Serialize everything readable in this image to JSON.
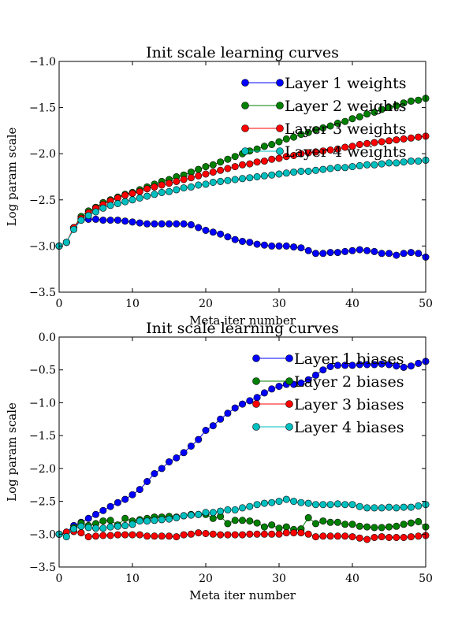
{
  "chart_data": [
    {
      "type": "line",
      "title": "Init scale learning curves",
      "xlabel": "Meta iter number",
      "ylabel": "Log param scale",
      "xlim": [
        0,
        50
      ],
      "ylim": [
        -3.5,
        -1.0
      ],
      "xticks": [
        "0",
        "10",
        "20",
        "30",
        "40",
        "50"
      ],
      "yticks": [
        "−1.0",
        "−1.5",
        "−2.0",
        "−2.5",
        "−3.0",
        "−3.5"
      ],
      "ytick_values": [
        -1.0,
        -1.5,
        -2.0,
        -2.5,
        -3.0,
        -3.5
      ],
      "grid": false,
      "legend_position": "top-right",
      "x": [
        0,
        1,
        2,
        3,
        4,
        5,
        6,
        7,
        8,
        9,
        10,
        11,
        12,
        13,
        14,
        15,
        16,
        17,
        18,
        19,
        20,
        21,
        22,
        23,
        24,
        25,
        26,
        27,
        28,
        29,
        30,
        31,
        32,
        33,
        34,
        35,
        36,
        37,
        38,
        39,
        40,
        41,
        42,
        43,
        44,
        45,
        46,
        47,
        48,
        49,
        50
      ],
      "series": [
        {
          "name": "Layer 1 weights",
          "color": "#0000ff",
          "values": [
            -3.0,
            -2.96,
            -2.8,
            -2.72,
            -2.71,
            -2.71,
            -2.72,
            -2.72,
            -2.72,
            -2.73,
            -2.74,
            -2.75,
            -2.76,
            -2.76,
            -2.76,
            -2.76,
            -2.76,
            -2.76,
            -2.77,
            -2.8,
            -2.83,
            -2.85,
            -2.87,
            -2.9,
            -2.93,
            -2.95,
            -2.96,
            -2.98,
            -2.99,
            -3.0,
            -3.0,
            -3.0,
            -3.01,
            -3.02,
            -3.05,
            -3.08,
            -3.08,
            -3.07,
            -3.07,
            -3.06,
            -3.05,
            -3.04,
            -3.05,
            -3.06,
            -3.08,
            -3.08,
            -3.1,
            -3.08,
            -3.07,
            -3.08,
            -3.12
          ]
        },
        {
          "name": "Layer 2 weights",
          "color": "#008000",
          "values": [
            -3.0,
            -2.96,
            -2.8,
            -2.68,
            -2.62,
            -2.58,
            -2.53,
            -2.5,
            -2.47,
            -2.44,
            -2.42,
            -2.39,
            -2.36,
            -2.33,
            -2.3,
            -2.28,
            -2.25,
            -2.23,
            -2.2,
            -2.17,
            -2.14,
            -2.12,
            -2.09,
            -2.06,
            -2.03,
            -2.0,
            -1.97,
            -1.95,
            -1.92,
            -1.9,
            -1.87,
            -1.84,
            -1.82,
            -1.79,
            -1.77,
            -1.74,
            -1.72,
            -1.7,
            -1.67,
            -1.65,
            -1.62,
            -1.6,
            -1.57,
            -1.55,
            -1.52,
            -1.5,
            -1.48,
            -1.45,
            -1.43,
            -1.42,
            -1.4
          ]
        },
        {
          "name": "Layer 3 weights",
          "color": "#ff0000",
          "values": [
            -3.0,
            -2.96,
            -2.8,
            -2.7,
            -2.64,
            -2.59,
            -2.55,
            -2.51,
            -2.48,
            -2.45,
            -2.43,
            -2.41,
            -2.38,
            -2.36,
            -2.34,
            -2.32,
            -2.3,
            -2.28,
            -2.26,
            -2.24,
            -2.22,
            -2.2,
            -2.18,
            -2.16,
            -2.14,
            -2.12,
            -2.11,
            -2.09,
            -2.08,
            -2.06,
            -2.05,
            -2.03,
            -2.02,
            -2.0,
            -1.99,
            -1.98,
            -1.97,
            -1.96,
            -1.95,
            -1.93,
            -1.92,
            -1.9,
            -1.89,
            -1.88,
            -1.87,
            -1.86,
            -1.85,
            -1.84,
            -1.83,
            -1.82,
            -1.81
          ]
        },
        {
          "name": "Layer 4 weights",
          "color": "#00bfbf",
          "values": [
            -3.0,
            -2.96,
            -2.82,
            -2.72,
            -2.67,
            -2.63,
            -2.59,
            -2.56,
            -2.54,
            -2.52,
            -2.5,
            -2.48,
            -2.46,
            -2.44,
            -2.42,
            -2.41,
            -2.39,
            -2.37,
            -2.36,
            -2.34,
            -2.33,
            -2.31,
            -2.3,
            -2.29,
            -2.28,
            -2.27,
            -2.26,
            -2.25,
            -2.24,
            -2.23,
            -2.22,
            -2.21,
            -2.2,
            -2.19,
            -2.19,
            -2.18,
            -2.17,
            -2.16,
            -2.15,
            -2.15,
            -2.14,
            -2.13,
            -2.12,
            -2.12,
            -2.11,
            -2.1,
            -2.1,
            -2.09,
            -2.08,
            -2.08,
            -2.07
          ]
        }
      ]
    },
    {
      "type": "line",
      "title": "Init scale learning curves",
      "xlabel": "Meta iter number",
      "ylabel": "Log param scale",
      "xlim": [
        0,
        50
      ],
      "ylim": [
        -3.5,
        0.0
      ],
      "xticks": [
        "0",
        "10",
        "20",
        "30",
        "40",
        "50"
      ],
      "yticks": [
        "0.0",
        "−0.5",
        "−1.0",
        "−1.5",
        "−2.0",
        "−2.5",
        "−3.0",
        "−3.5"
      ],
      "ytick_values": [
        0.0,
        -0.5,
        -1.0,
        -1.5,
        -2.0,
        -2.5,
        -3.0,
        -3.5
      ],
      "grid": false,
      "legend_position": "top-right",
      "x": [
        0,
        1,
        2,
        3,
        4,
        5,
        6,
        7,
        8,
        9,
        10,
        11,
        12,
        13,
        14,
        15,
        16,
        17,
        18,
        19,
        20,
        21,
        22,
        23,
        24,
        25,
        26,
        27,
        28,
        29,
        30,
        31,
        32,
        33,
        34,
        35,
        36,
        37,
        38,
        39,
        40,
        41,
        42,
        43,
        44,
        45,
        46,
        47,
        48,
        49,
        50
      ],
      "series": [
        {
          "name": "Layer 1 biases",
          "color": "#0000ff",
          "values": [
            -3.0,
            -2.97,
            -2.87,
            -2.82,
            -2.76,
            -2.7,
            -2.64,
            -2.58,
            -2.52,
            -2.47,
            -2.4,
            -2.32,
            -2.2,
            -2.08,
            -2.0,
            -1.9,
            -1.84,
            -1.76,
            -1.66,
            -1.56,
            -1.42,
            -1.35,
            -1.25,
            -1.16,
            -1.08,
            -1.02,
            -0.97,
            -0.92,
            -0.85,
            -0.79,
            -0.75,
            -0.72,
            -0.72,
            -0.7,
            -0.65,
            -0.58,
            -0.5,
            -0.45,
            -0.43,
            -0.43,
            -0.43,
            -0.42,
            -0.42,
            -0.42,
            -0.41,
            -0.42,
            -0.44,
            -0.46,
            -0.44,
            -0.4,
            -0.37
          ]
        },
        {
          "name": "Layer 2 biases",
          "color": "#008000",
          "values": [
            -3.0,
            -2.97,
            -2.9,
            -2.83,
            -2.87,
            -2.84,
            -2.8,
            -2.79,
            -2.86,
            -2.76,
            -2.8,
            -2.78,
            -2.76,
            -2.74,
            -2.74,
            -2.73,
            -2.74,
            -2.72,
            -2.7,
            -2.7,
            -2.7,
            -2.76,
            -2.73,
            -2.84,
            -2.79,
            -2.79,
            -2.8,
            -2.83,
            -2.89,
            -2.86,
            -2.91,
            -2.89,
            -2.93,
            -2.92,
            -2.75,
            -2.84,
            -2.8,
            -2.82,
            -2.82,
            -2.85,
            -2.85,
            -2.88,
            -2.89,
            -2.9,
            -2.9,
            -2.89,
            -2.88,
            -2.85,
            -2.83,
            -2.81,
            -2.89
          ]
        },
        {
          "name": "Layer 3 biases",
          "color": "#ff0000",
          "values": [
            -3.0,
            -2.97,
            -2.96,
            -2.98,
            -3.04,
            -3.03,
            -3.02,
            -3.02,
            -3.01,
            -3.01,
            -3.01,
            -3.01,
            -3.03,
            -3.03,
            -3.03,
            -3.03,
            -3.04,
            -3.01,
            -3.0,
            -2.98,
            -2.99,
            -3.0,
            -3.01,
            -3.01,
            -3.01,
            -3.01,
            -3.0,
            -3.0,
            -3.0,
            -3.0,
            -3.0,
            -2.98,
            -2.98,
            -2.98,
            -3.0,
            -3.04,
            -3.03,
            -3.03,
            -3.03,
            -3.03,
            -3.04,
            -3.06,
            -3.08,
            -3.05,
            -3.04,
            -3.05,
            -3.05,
            -3.05,
            -3.04,
            -3.03,
            -3.02
          ]
        },
        {
          "name": "Layer 4 biases",
          "color": "#00bfbf",
          "values": [
            -3.0,
            -3.04,
            -2.92,
            -2.88,
            -2.9,
            -2.91,
            -2.91,
            -2.89,
            -2.88,
            -2.87,
            -2.85,
            -2.8,
            -2.8,
            -2.79,
            -2.78,
            -2.77,
            -2.75,
            -2.72,
            -2.71,
            -2.7,
            -2.67,
            -2.67,
            -2.65,
            -2.63,
            -2.63,
            -2.6,
            -2.58,
            -2.55,
            -2.53,
            -2.52,
            -2.5,
            -2.47,
            -2.5,
            -2.52,
            -2.53,
            -2.55,
            -2.55,
            -2.55,
            -2.54,
            -2.55,
            -2.55,
            -2.58,
            -2.6,
            -2.6,
            -2.6,
            -2.59,
            -2.6,
            -2.59,
            -2.59,
            -2.57,
            -2.55
          ]
        }
      ]
    }
  ]
}
